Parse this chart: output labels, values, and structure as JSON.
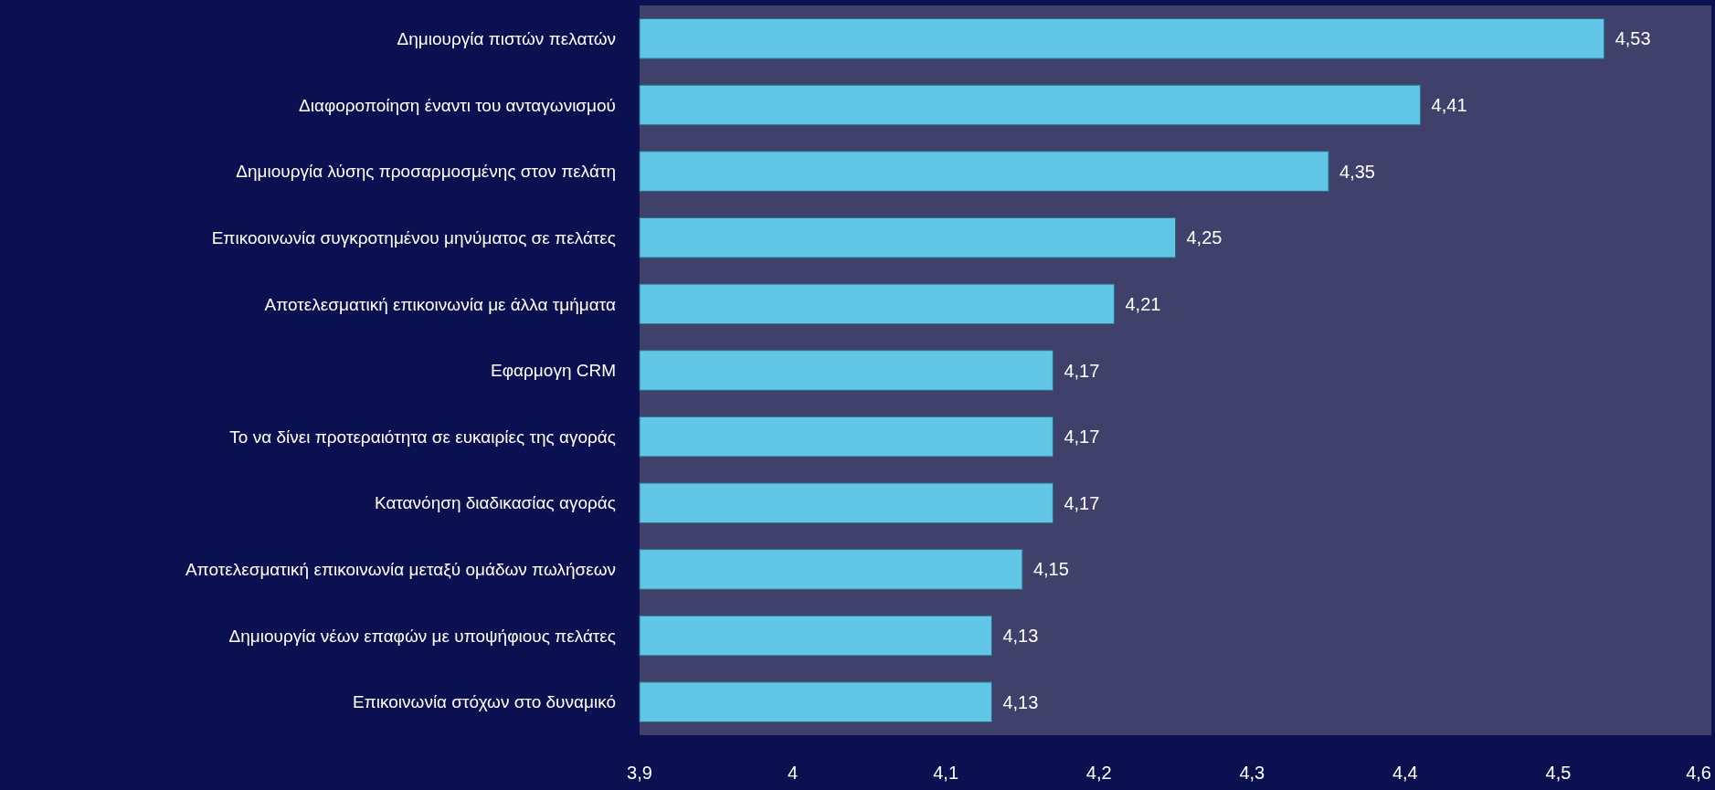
{
  "chart_data": {
    "type": "bar",
    "orientation": "horizontal",
    "categories": [
      "Δημιουργία πιστών πελατών",
      "Διαφοροποίηση έναντι του ανταγωνισμού",
      "Δημιουργία λύσης προσαρμοσμένης στον πελάτη",
      "Επικοοινωνία συγκροτημένου μηνύματος σε πελάτες",
      "Αποτελεσματική επικοινωνία με άλλα τμήματα",
      "Εφαρμογη CRM",
      "Το να δίνει προτεραιότητα σε ευκαιρίες της αγοράς",
      "Κατανόηση διαδικασίας αγοράς",
      "Αποτελεσματική επικοινωνία μεταξύ ομάδων πωλήσεων",
      "Δημιουργία νέων επαφών με υποψήφιους πελάτες",
      "Επικοινωνία στόχων στο δυναμικό"
    ],
    "values": [
      4.53,
      4.41,
      4.35,
      4.25,
      4.21,
      4.17,
      4.17,
      4.17,
      4.15,
      4.13,
      4.13
    ],
    "value_labels": [
      "4,53",
      "4,41",
      "4,35",
      "4,25",
      "4,21",
      "4,17",
      "4,17",
      "4,17",
      "4,15",
      "4,13",
      "4,13"
    ],
    "color": "#62c6e6",
    "xlim": [
      3.9,
      4.6
    ],
    "xticks": [
      {
        "value": 3.9,
        "label": "3,9"
      },
      4,
      {
        "value": 4.1,
        "label": "4,1"
      },
      {
        "value": 4.2,
        "label": "4,2"
      },
      {
        "value": 4.3,
        "label": "4,3"
      },
      {
        "value": 4.4,
        "label": "4,4"
      },
      {
        "value": 4.5,
        "label": "4,5"
      },
      {
        "value": 4.6,
        "label": "4,6"
      }
    ],
    "grid": false
  }
}
